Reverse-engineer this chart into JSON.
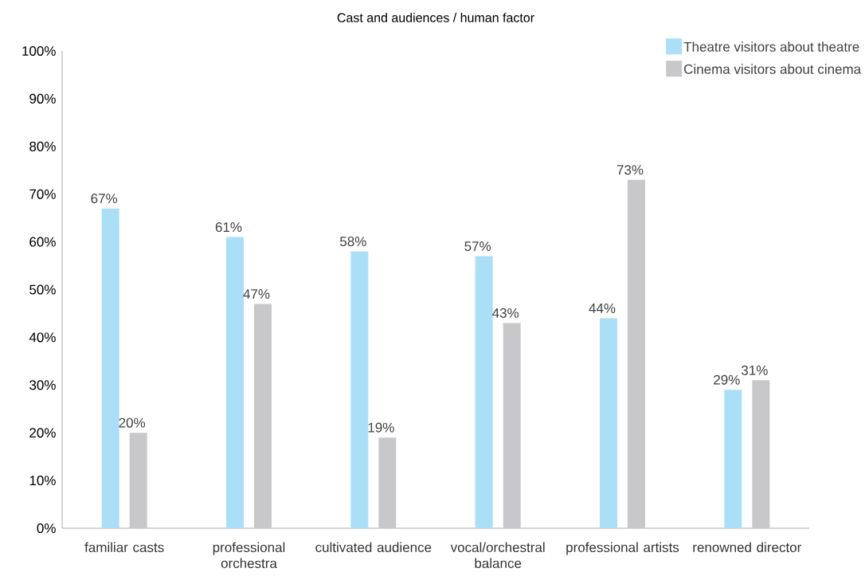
{
  "chart_data": {
    "type": "bar",
    "title": "Cast and audiences / human factor",
    "categories": [
      "familiar casts",
      "professional orchestra",
      "cultivated audience",
      "vocal/orchestral balance",
      "professional artists",
      "renowned director"
    ],
    "series": [
      {
        "name": "Theatre visitors about theatre",
        "color": "#aadff7",
        "values": [
          67,
          61,
          58,
          57,
          44,
          29
        ],
        "value_labels": [
          "67%",
          "61%",
          "58%",
          "57%",
          "44%",
          "29%"
        ]
      },
      {
        "name": "Cinema visitors about cinema",
        "color": "#c8c8ca",
        "values": [
          20,
          47,
          19,
          43,
          73,
          31
        ],
        "value_labels": [
          "20%",
          "47%",
          "19%",
          "43%",
          "73%",
          "31%"
        ]
      }
    ],
    "ylim": [
      0,
      100
    ],
    "yticks": [
      {
        "value": 0,
        "label": "0%"
      },
      {
        "value": 10,
        "label": "10%"
      },
      {
        "value": 20,
        "label": "20%"
      },
      {
        "value": 30,
        "label": "30%"
      },
      {
        "value": 40,
        "label": "40%"
      },
      {
        "value": 50,
        "label": "50%"
      },
      {
        "value": 60,
        "label": "60%"
      },
      {
        "value": 70,
        "label": "70%"
      },
      {
        "value": 80,
        "label": "80%"
      },
      {
        "value": 90,
        "label": "90%"
      },
      {
        "value": 100,
        "label": "100%"
      }
    ],
    "grid": false,
    "legend": "top right"
  }
}
